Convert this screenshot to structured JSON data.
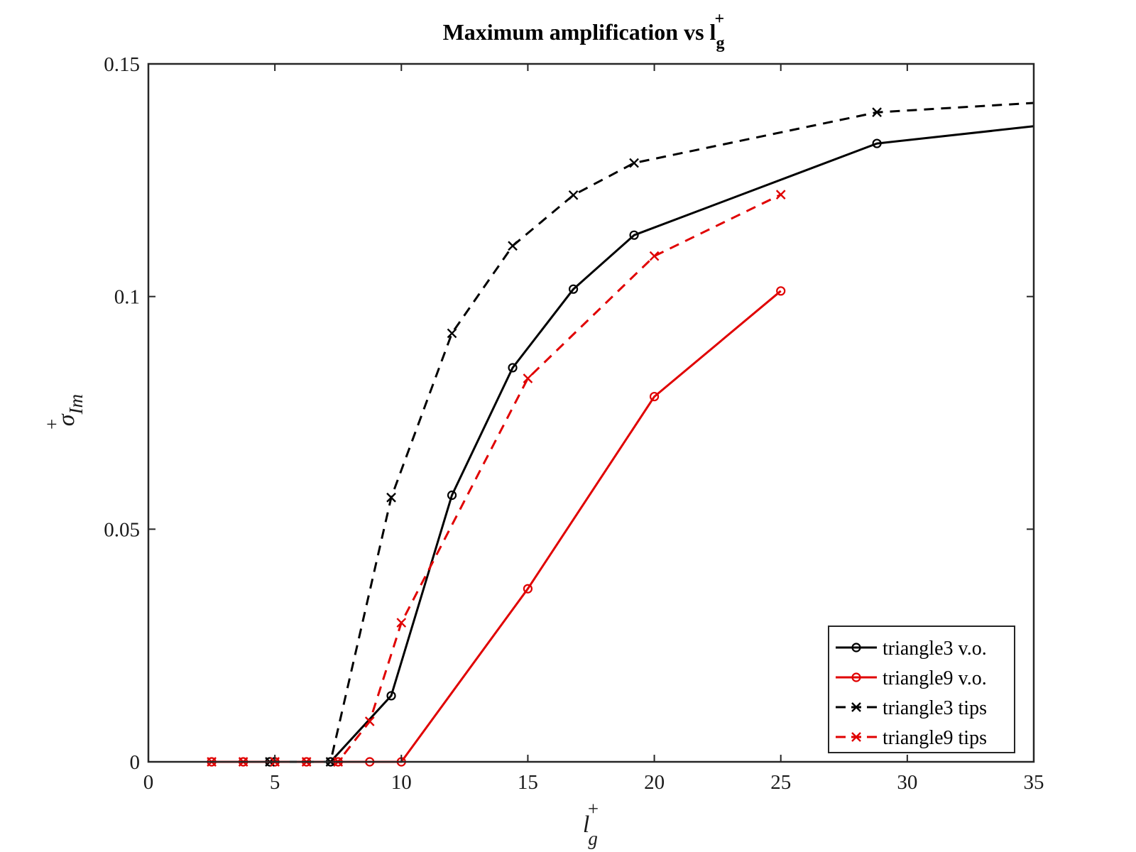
{
  "chart_data": {
    "type": "line",
    "title": "Maximum amplification vs l",
    "title_sub": "g",
    "title_sup": "+",
    "xlabel": "l",
    "xlabel_sub": "g",
    "xlabel_sup": "+",
    "ylabel": "σ",
    "ylabel_sub": "Im",
    "ylabel_sup": "+",
    "xlim": [
      0,
      35
    ],
    "ylim": [
      0,
      0.15
    ],
    "xticks": [
      0,
      5,
      10,
      15,
      20,
      25,
      30,
      35
    ],
    "xtick_labels": [
      "0",
      "5",
      "10",
      "15",
      "20",
      "25",
      "30",
      "35"
    ],
    "yticks": [
      0,
      0.05,
      0.1,
      0.15
    ],
    "ytick_labels": [
      "0",
      "0.05",
      "0.1",
      "0.15"
    ],
    "grid": false,
    "legend_position": "bottom-right",
    "series": [
      {
        "name": "triangle3 v.o.",
        "color": "#000000",
        "line_style": "solid",
        "marker": "circle",
        "x": [
          4.8,
          7.2,
          9.6,
          12.0,
          14.4,
          16.8,
          19.2,
          28.8,
          35.0
        ],
        "y": [
          0.0,
          0.0,
          0.0142,
          0.0573,
          0.0847,
          0.1016,
          0.1132,
          0.1329,
          0.1366
        ],
        "marker_count": 8
      },
      {
        "name": "triangle9 v.o.",
        "color": "#e00000",
        "line_style": "solid",
        "marker": "circle",
        "x": [
          2.5,
          3.75,
          5.0,
          6.25,
          7.5,
          8.75,
          10.0,
          15.0,
          20.0,
          25.0
        ],
        "y": [
          0.0,
          0.0,
          0.0,
          0.0,
          0.0,
          0.0,
          0.0,
          0.0372,
          0.0785,
          0.1012
        ],
        "marker_count": 10
      },
      {
        "name": "triangle3 tips",
        "color": "#000000",
        "line_style": "dashed",
        "marker": "x",
        "x": [
          4.8,
          7.2,
          9.6,
          12.0,
          14.4,
          16.8,
          19.2,
          28.8,
          35.0
        ],
        "y": [
          0.0,
          0.0,
          0.0568,
          0.0921,
          0.1109,
          0.1218,
          0.1287,
          0.1396,
          0.1416
        ],
        "marker_count": 8
      },
      {
        "name": "triangle9 tips",
        "color": "#e00000",
        "line_style": "dashed",
        "marker": "x",
        "x": [
          2.5,
          3.75,
          5.0,
          6.25,
          7.5,
          8.75,
          10.0,
          15.0,
          20.0,
          25.0
        ],
        "y": [
          0.0,
          0.0,
          0.0,
          0.0,
          0.0,
          0.0087,
          0.0299,
          0.0824,
          0.1087,
          0.1219
        ],
        "marker_count": 10
      }
    ]
  }
}
